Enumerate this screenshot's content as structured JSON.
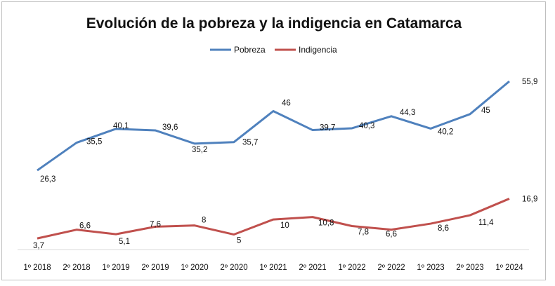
{
  "chart_data": {
    "type": "line",
    "title": "Evolución de la pobreza y la indigencia en Catamarca",
    "categories": [
      "1º 2018",
      "2º 2018",
      "1º 2019",
      "2º 2019",
      "1º 2020",
      "2º 2020",
      "1º 2021",
      "2º 2021",
      "1º 2022",
      "2º 2022",
      "1º 2023",
      "2º 2023",
      "1º 2024"
    ],
    "series": [
      {
        "name": "Pobreza",
        "color": "#4f81bd",
        "values": [
          26.3,
          35.5,
          40.1,
          39.6,
          35.2,
          35.7,
          46,
          39.7,
          40.3,
          44.3,
          40.2,
          45,
          55.9
        ],
        "labels": [
          "26,3",
          "35,5",
          "40,1",
          "39,6",
          "35,2",
          "35,7",
          "46",
          "39,7",
          "40,3",
          "44,3",
          "40,2",
          "45",
          "55,9"
        ]
      },
      {
        "name": "Indigencia",
        "color": "#c0504d",
        "values": [
          3.7,
          6.6,
          5.1,
          7.6,
          8,
          5,
          10,
          10.8,
          7.8,
          6.6,
          8.6,
          11.4,
          16.9
        ],
        "labels": [
          "3,7",
          "6,6",
          "5,1",
          "7,6",
          "8",
          "5",
          "10",
          "10,8",
          "7,8",
          "6,6",
          "8,6",
          "11,4",
          "16,9"
        ]
      }
    ],
    "ylim": [
      0,
      62
    ],
    "grid": false,
    "legend": "top-center"
  }
}
